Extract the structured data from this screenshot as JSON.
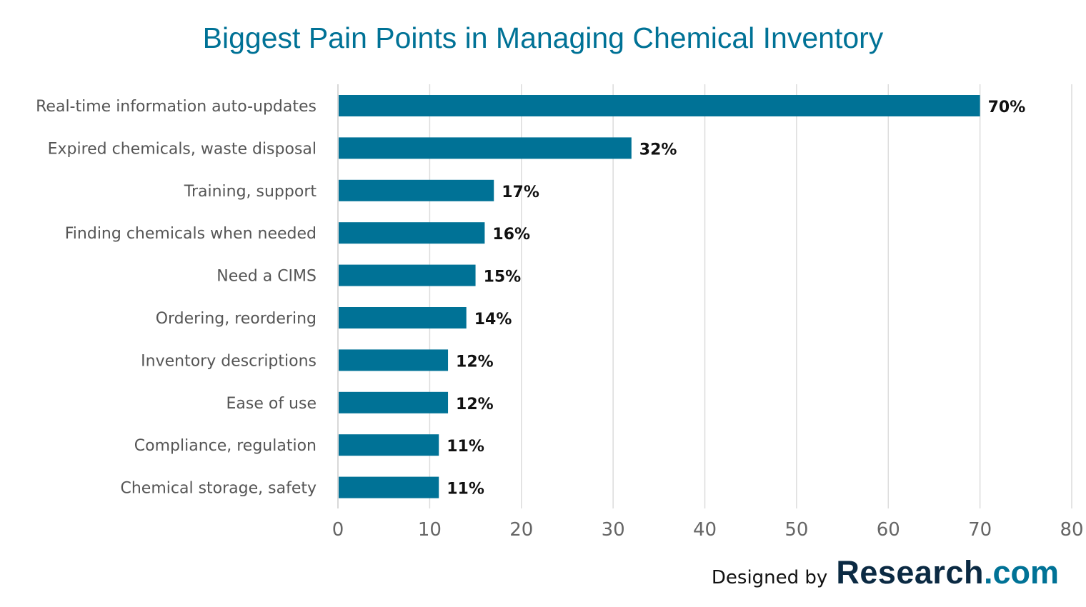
{
  "chart_data": {
    "type": "bar",
    "orientation": "horizontal",
    "title": "Biggest Pain Points in Managing Chemical Inventory",
    "categories": [
      "Real-time information auto-updates",
      "Expired chemicals, waste disposal",
      "Training, support",
      "Finding chemicals when needed",
      "Need a CIMS",
      "Ordering, reordering",
      "Inventory descriptions",
      "Ease of use",
      "Compliance, regulation",
      "Chemical storage, safety"
    ],
    "values": [
      70,
      32,
      17,
      16,
      15,
      14,
      12,
      12,
      11,
      11
    ],
    "data_labels": [
      "70%",
      "32%",
      "17%",
      "16%",
      "15%",
      "14%",
      "12%",
      "12%",
      "11%",
      "11%"
    ],
    "xlim": [
      0,
      80
    ],
    "xticks": [
      0,
      10,
      20,
      30,
      40,
      50,
      60,
      70,
      80
    ],
    "xlabel": "",
    "ylabel": "",
    "grid": "vertical",
    "bar_color": "#007296"
  },
  "credit": {
    "prefix": "Designed by",
    "brand": "Research",
    "tld": ".com"
  },
  "colors": {
    "title": "#007296",
    "bar": "#007296",
    "grid": "#dcdcdc",
    "brand_dark": "#0b2a43"
  }
}
